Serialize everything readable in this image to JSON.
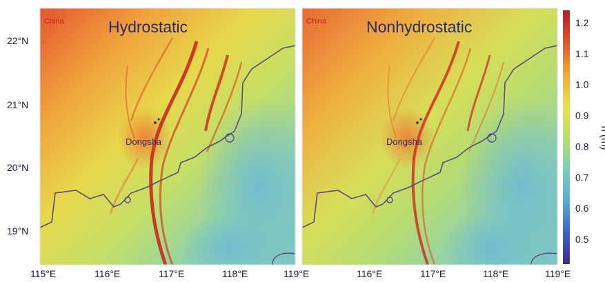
{
  "panels": [
    {
      "title": "Hydrostatic",
      "region_label": "China",
      "place_label": "Dongsha"
    },
    {
      "title": "Nonhydrostatic",
      "region_label": "China",
      "place_label": "Dongsha"
    }
  ],
  "axes": {
    "y_ticks": [
      "22°N",
      "21°N",
      "20°N",
      "19°N"
    ],
    "x_ticks_left": [
      "115°E",
      "116°E",
      "117°E",
      "118°E",
      "119°E"
    ],
    "x_ticks_right": [
      "116°E",
      "117°E",
      "118°E",
      "119°E"
    ]
  },
  "colorbar": {
    "label": "h (m)",
    "ticks": [
      "1.2",
      "1.1",
      "1.0",
      "0.9",
      "0.8",
      "0.7",
      "0.6",
      "0.5"
    ],
    "range": [
      0.42,
      1.24
    ],
    "colors": [
      "#3b2a8c",
      "#3d63c4",
      "#5aaed6",
      "#7ccfb4",
      "#b7e06a",
      "#e9e04c",
      "#f3a83a",
      "#e0552c",
      "#b71c1c"
    ]
  }
}
